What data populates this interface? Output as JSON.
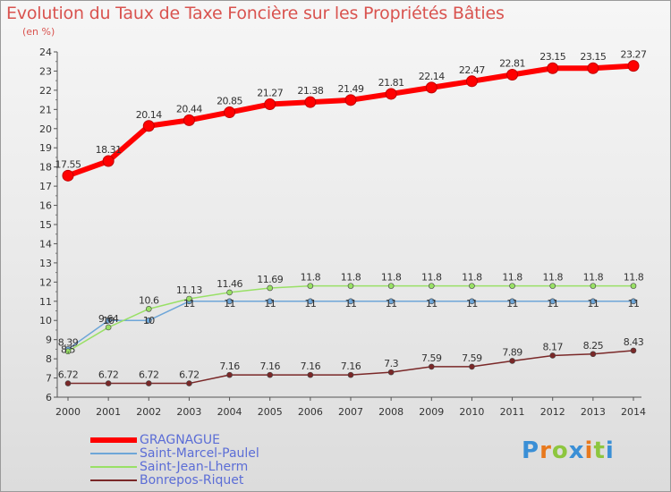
{
  "title": "Evolution du Taux de Taxe Foncière sur les Propriétés Bâties",
  "unit_label": "(en %)",
  "logo": {
    "text": "Proxiti"
  },
  "chart_data": {
    "type": "line",
    "x": [
      "2000",
      "2001",
      "2002",
      "2003",
      "2004",
      "2005",
      "2006",
      "2007",
      "2008",
      "2009",
      "2010",
      "2011",
      "2012",
      "2013",
      "2014"
    ],
    "ylim": [
      6,
      24
    ],
    "yticks": [
      6,
      7,
      8,
      9,
      10,
      11,
      12,
      13,
      14,
      15,
      16,
      17,
      18,
      19,
      20,
      21,
      22,
      23,
      24
    ],
    "grid": false,
    "legend_position": "bottom-left",
    "series": [
      {
        "name": "GRAGNAGUE",
        "color": "#ff0000",
        "values": [
          17.55,
          18.31,
          20.14,
          20.44,
          20.85,
          21.27,
          21.38,
          21.49,
          21.81,
          22.14,
          22.47,
          22.81,
          23.15,
          23.15,
          23.27
        ],
        "labels": [
          "17.55",
          "18.31",
          "20.14",
          "20.44",
          "20.85",
          "21.27",
          "21.38",
          "21.49",
          "21.81",
          "22.14",
          "22.47",
          "22.81",
          "23.15",
          "23.15",
          "23.27"
        ]
      },
      {
        "name": "Saint-Marcel-Paulel",
        "color": "#6ea6d8",
        "values": [
          8.5,
          10,
          10,
          11,
          11,
          11,
          11,
          11,
          11,
          11,
          11,
          11,
          11,
          11,
          11
        ],
        "labels": [
          "8.5",
          "10",
          "10",
          "11",
          "11",
          "11",
          "11",
          "11",
          "11",
          "11",
          "11",
          "11",
          "11",
          "11",
          "11"
        ]
      },
      {
        "name": "Saint-Jean-Lherm",
        "color": "#99e066",
        "values": [
          8.39,
          9.64,
          10.6,
          11.13,
          11.46,
          11.69,
          11.8,
          11.8,
          11.8,
          11.8,
          11.8,
          11.8,
          11.8,
          11.8,
          11.8
        ],
        "labels": [
          "8.39",
          "9.64",
          "10.6",
          "11.13",
          "11.46",
          "11.69",
          "11.8",
          "11.8",
          "11.8",
          "11.8",
          "11.8",
          "11.8",
          "11.8",
          "11.8",
          "11.8"
        ]
      },
      {
        "name": "Bonrepos-Riquet",
        "color": "#7a2828",
        "values": [
          6.72,
          6.72,
          6.72,
          6.72,
          7.16,
          7.16,
          7.16,
          7.16,
          7.3,
          7.59,
          7.59,
          7.89,
          8.17,
          8.25,
          8.43
        ],
        "labels": [
          "6.72",
          "6.72",
          "6.72",
          "6.72",
          "7.16",
          "7.16",
          "7.16",
          "7.16",
          "7.3",
          "7.59",
          "7.59",
          "7.89",
          "8.17",
          "8.25",
          "8.43"
        ]
      }
    ]
  }
}
